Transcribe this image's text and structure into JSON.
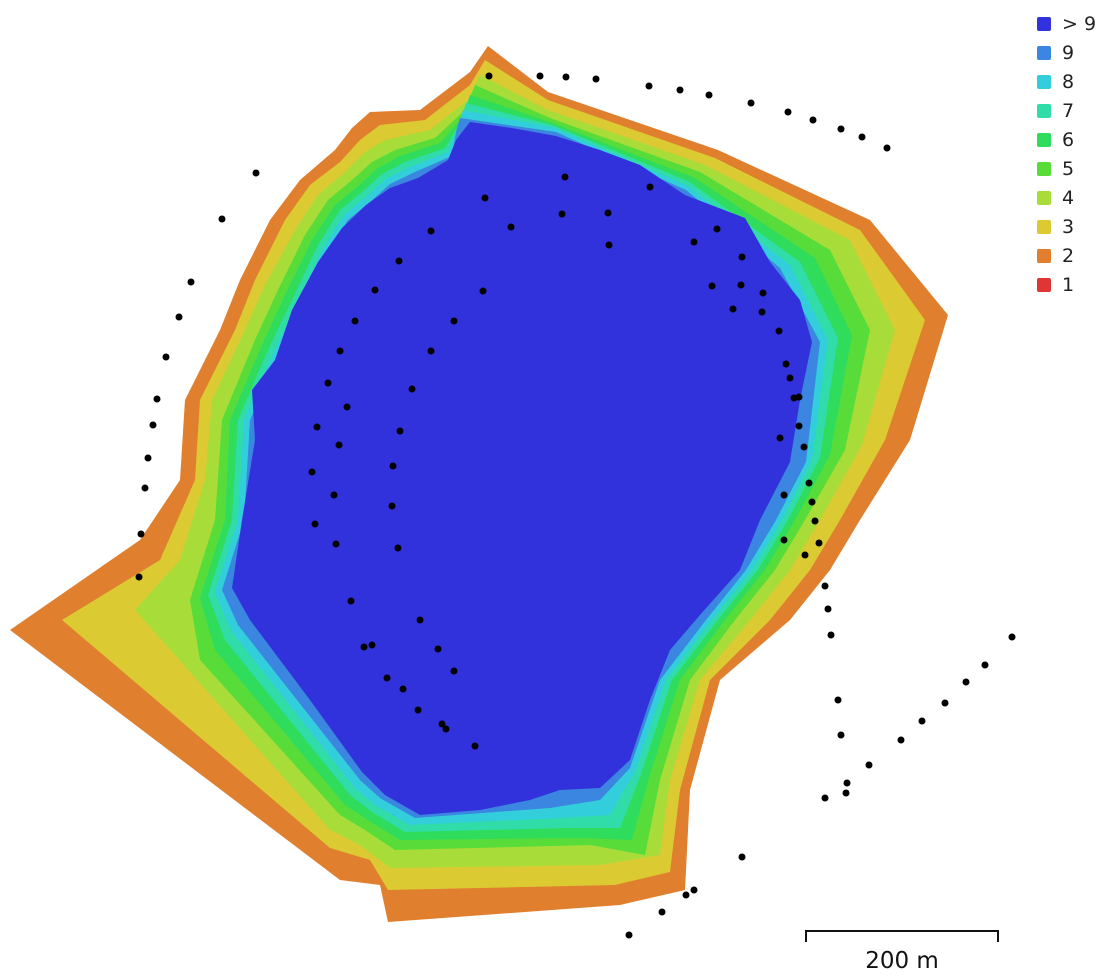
{
  "colors": {
    "c2": "#e07f2e",
    "c3": "#dcca33",
    "c4": "#a8dc38",
    "c5": "#58dc3a",
    "c6": "#2fdc5c",
    "c7": "#30dca8",
    "c8": "#32cedc",
    "c9": "#3a86e0",
    "c10": "#3232dc",
    "dot": "#000000"
  },
  "legend": {
    "items": [
      {
        "label": "> 9",
        "color": "#3232dc",
        "icon": "swatch-square"
      },
      {
        "label": "9",
        "color": "#3a86e0",
        "icon": "swatch-square"
      },
      {
        "label": "8",
        "color": "#32cedc",
        "icon": "swatch-square"
      },
      {
        "label": "7",
        "color": "#30dca8",
        "icon": "swatch-square"
      },
      {
        "label": "6",
        "color": "#2fdc5c",
        "icon": "swatch-square"
      },
      {
        "label": "5",
        "color": "#58dc3a",
        "icon": "swatch-square"
      },
      {
        "label": "4",
        "color": "#a8dc38",
        "icon": "swatch-square"
      },
      {
        "label": "3",
        "color": "#dcca33",
        "icon": "swatch-square"
      },
      {
        "label": "2",
        "color": "#e07f2e",
        "icon": "swatch-square"
      },
      {
        "label": "1",
        "color": "#e03535",
        "icon": "swatch-square"
      }
    ]
  },
  "scalebar": {
    "label": "200 m"
  }
}
